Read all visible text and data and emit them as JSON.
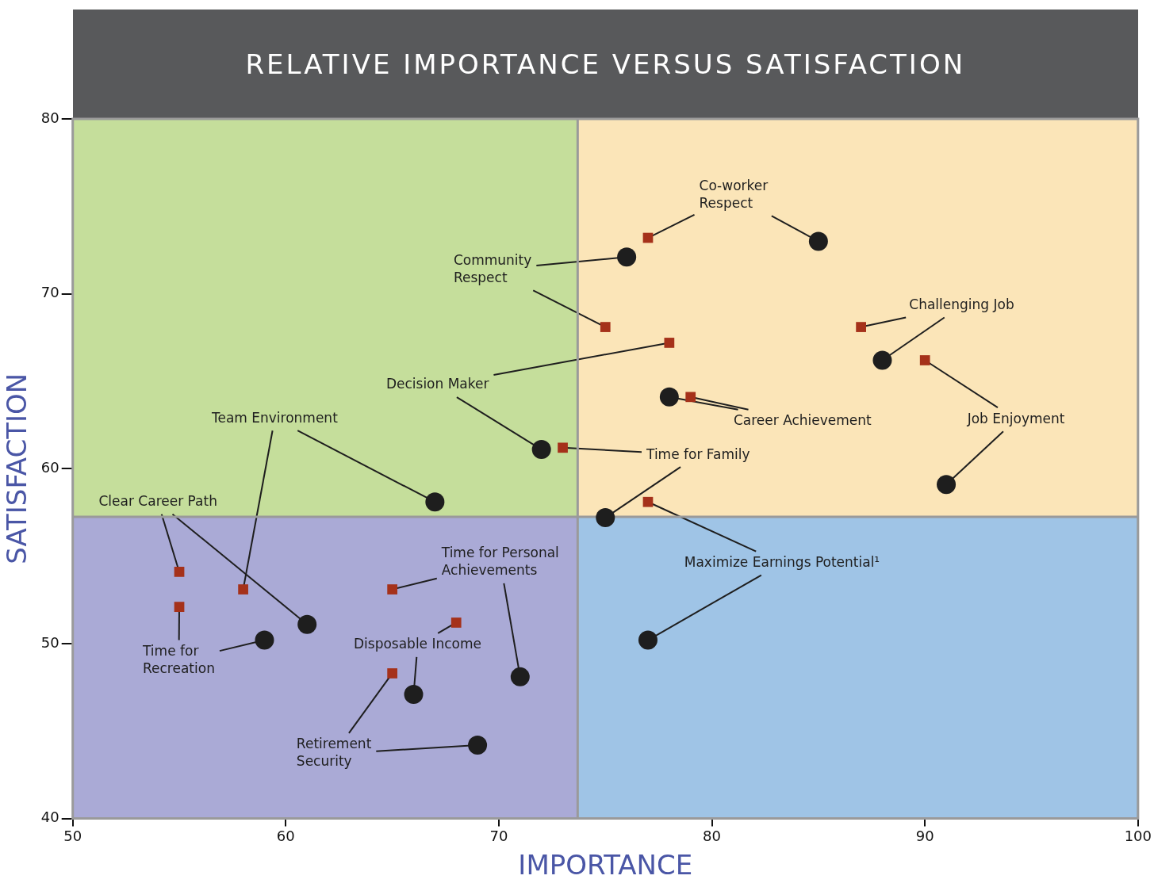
{
  "chart_data": {
    "type": "scatter",
    "title": "RELATIVE IMPORTANCE VERSUS SATISFACTION",
    "xlabel": "IMPORTANCE",
    "ylabel": "SATISFACTION",
    "xlim": [
      50,
      100
    ],
    "xticks": [
      50,
      60,
      70,
      80,
      90,
      100
    ],
    "ylim": [
      40,
      80
    ],
    "yticks": [
      40,
      50,
      60,
      70,
      80
    ],
    "legend": false,
    "series": [
      {
        "marker": "square",
        "color": "#a5311a",
        "x": [
          77,
          75,
          78,
          87,
          90,
          79,
          73,
          77,
          55,
          58,
          55,
          65,
          68,
          65
        ],
        "values": [
          73.2,
          68.1,
          67.2,
          68.1,
          66.2,
          64.1,
          61.2,
          58.1,
          54.1,
          53.1,
          52.1,
          53.1,
          51.2,
          48.3
        ]
      },
      {
        "marker": "circle",
        "color": "#1e1e1e",
        "x": [
          85,
          76,
          72,
          88,
          91,
          78,
          75,
          77,
          61,
          67,
          59,
          71,
          66,
          69
        ],
        "values": [
          73,
          72.1,
          61.1,
          66.2,
          59.1,
          64.1,
          57.2,
          50.2,
          51.1,
          58.1,
          50.2,
          48.1,
          47.1,
          44.2
        ]
      }
    ],
    "ref_lines": [
      {
        "axis": "x",
        "value": 73.7,
        "color": "#9a9a9a"
      },
      {
        "axis": "y",
        "value": 57.25,
        "color": "#9a9a9a"
      }
    ],
    "annotations": [
      {
        "text": "Co-worker Respect",
        "x": 85,
        "y": 73
      },
      {
        "text": "Community Respect",
        "x": 76,
        "y": 72.1
      },
      {
        "text": "Decision Maker",
        "x": 72,
        "y": 61.1
      },
      {
        "text": "Challenging Job",
        "x": 88,
        "y": 66.2
      },
      {
        "text": "Job Enjoyment",
        "x": 91,
        "y": 59.1
      },
      {
        "text": "Career Achievement",
        "x": 78,
        "y": 64.1
      },
      {
        "text": "Time for Family",
        "x": 75,
        "y": 57.2
      },
      {
        "text": "Maximize Earnings Potential¹",
        "x": 77,
        "y": 50.2
      },
      {
        "text": "Clear Career Path",
        "x": 61,
        "y": 51.1
      },
      {
        "text": "Team Environment",
        "x": 67,
        "y": 58.1
      },
      {
        "text": "Time for Recreation",
        "x": 59,
        "y": 50.2
      },
      {
        "text": "Time for Personal Achievements",
        "x": 71,
        "y": 48.1
      },
      {
        "text": "Disposable Income",
        "x": 66,
        "y": 47.1
      },
      {
        "text": "Retirement Security",
        "x": 69,
        "y": 44.2
      }
    ]
  }
}
